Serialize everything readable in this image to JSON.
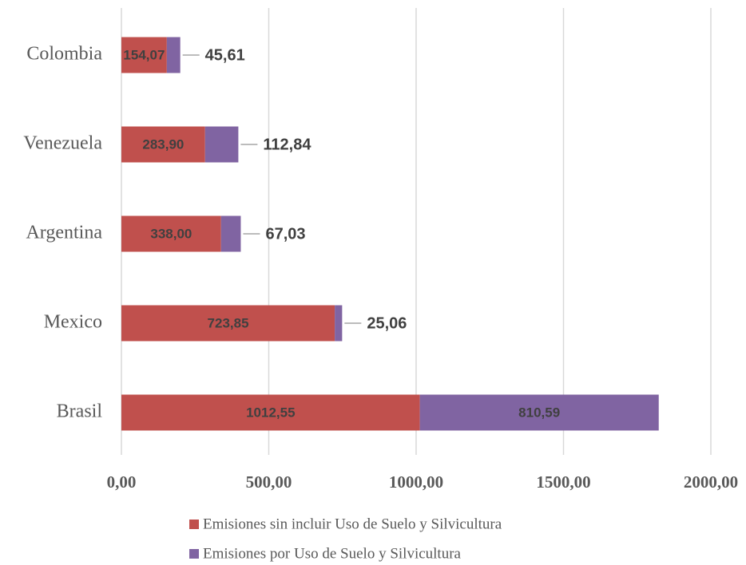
{
  "chart_data": {
    "type": "stacked-bar-horizontal",
    "categories": [
      "Colombia",
      "Venezuela",
      "Argentina",
      "Mexico",
      "Brasil"
    ],
    "series": [
      {
        "name": "Emisiones sin incluir Uso de Suelo y Silvicultura",
        "color": "#c0504d",
        "values": [
          154.07,
          283.9,
          338.0,
          723.85,
          1012.55
        ],
        "value_labels": [
          "154,07",
          "283,90",
          "338,00",
          "723,85",
          "1012,55"
        ]
      },
      {
        "name": "Emisiones por Uso de Suelo y Silvicultura",
        "color": "#8064a2",
        "values": [
          45.61,
          112.84,
          67.03,
          25.06,
          810.59
        ],
        "value_labels": [
          "45,61",
          "112,84",
          "67,03",
          "25,06",
          "810,59"
        ]
      }
    ],
    "xlim": [
      0,
      2000
    ],
    "xticks": [
      {
        "value": 0,
        "label": "0,00"
      },
      {
        "value": 500,
        "label": "500,00"
      },
      {
        "value": 1000,
        "label": "1000,00"
      },
      {
        "value": 1500,
        "label": "1500,00"
      },
      {
        "value": 2000,
        "label": "2000,00"
      }
    ],
    "grid": true
  }
}
